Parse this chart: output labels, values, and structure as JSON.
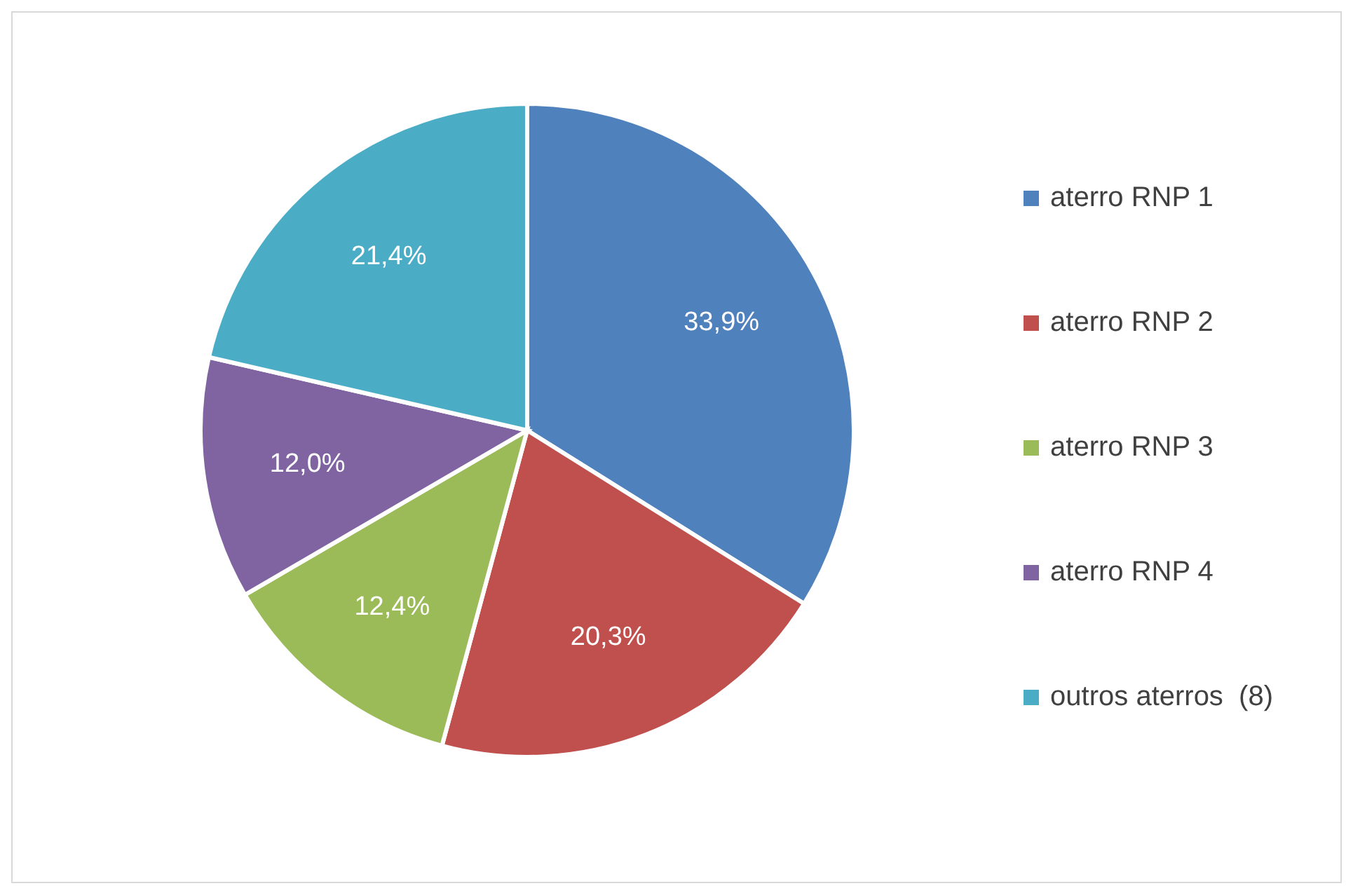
{
  "chart_data": {
    "type": "pie",
    "categories": [
      "aterro RNP 1",
      "aterro RNP 2",
      "aterro RNP 3",
      "aterro RNP 4",
      "outros aterros  (8)"
    ],
    "values": [
      33.9,
      20.3,
      12.4,
      12.0,
      21.4
    ],
    "colors": [
      "#4f81bd",
      "#c0504d",
      "#9bbb59",
      "#8064a2",
      "#4bacc6"
    ],
    "value_labels": [
      "33,9%",
      "20,3%",
      "12,4%",
      "12,0%",
      "21,4%"
    ],
    "legend": "right"
  }
}
